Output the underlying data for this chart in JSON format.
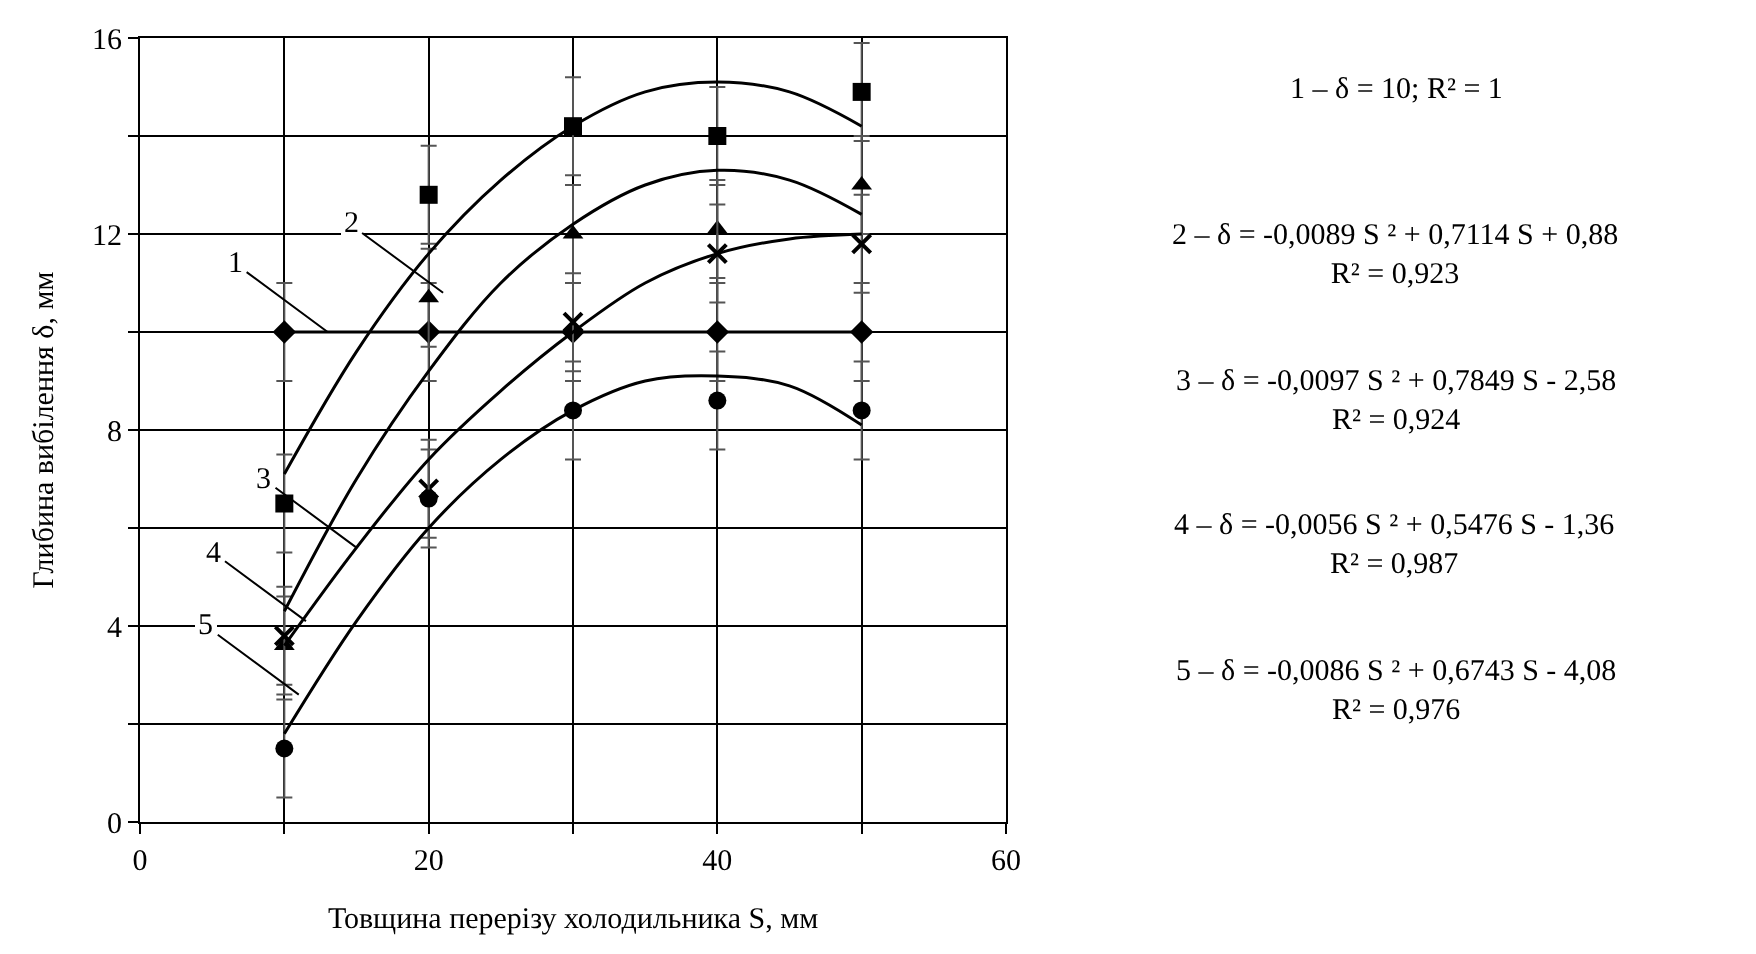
{
  "chart_data": {
    "type": "scatter",
    "xlabel": "Товщина перерізу холодильника S, мм",
    "ylabel": "Глибина вибілення δ, мм",
    "xlim": [
      0,
      60
    ],
    "ylim": [
      0,
      16
    ],
    "xticks": [
      0,
      {
        "value": 10,
        "label": null
      },
      20,
      {
        "value": 30,
        "label": null
      },
      40,
      {
        "value": 50,
        "label": null
      },
      60
    ],
    "yticks": [
      0,
      {
        "value": 2,
        "label": null
      },
      4,
      {
        "value": 6,
        "label": null
      },
      8,
      {
        "value": 10,
        "label": null
      },
      12,
      {
        "value": 14,
        "label": null
      },
      16
    ],
    "grid": true,
    "series": [
      {
        "type": "line",
        "marker": "diamond",
        "color": "#000000",
        "x": [
          10,
          20,
          30,
          40,
          50
        ],
        "values": [
          10,
          10,
          10,
          10,
          10
        ],
        "errors": [
          1,
          1,
          1,
          1,
          1
        ]
      },
      {
        "marker": "square",
        "color": "#000000",
        "x": [
          10,
          20,
          30,
          40,
          50
        ],
        "values": [
          6.5,
          12.8,
          14.2,
          14.0,
          14.9
        ],
        "errors": [
          1,
          1,
          1,
          1,
          1
        ]
      },
      {
        "marker": "triangle",
        "color": "#000000",
        "x": [
          10,
          20,
          30,
          40,
          50
        ],
        "values": [
          3.6,
          10.7,
          12.0,
          12.1,
          13.0
        ],
        "errors": [
          1,
          1,
          1,
          1,
          1
        ]
      },
      {
        "marker": "cross",
        "color": "#000000",
        "x": [
          10,
          20,
          30,
          40,
          50
        ],
        "values": [
          3.8,
          6.8,
          10.2,
          11.6,
          11.8
        ],
        "errors": [
          1,
          1,
          1,
          1,
          1
        ]
      },
      {
        "marker": "circle",
        "color": "#000000",
        "x": [
          10,
          20,
          30,
          40,
          50
        ],
        "values": [
          1.5,
          6.6,
          8.4,
          8.6,
          8.4
        ],
        "errors": [
          1,
          1,
          1,
          1,
          1
        ]
      },
      {
        "type": "line",
        "marker": "none",
        "color": "#000000",
        "x": [
          10,
          15,
          20,
          25,
          30,
          35,
          40,
          45,
          50
        ],
        "values": [
          7.1,
          9.6,
          11.6,
          13.1,
          14.2,
          14.9,
          15.1,
          14.9,
          14.2
        ]
      },
      {
        "type": "line",
        "marker": "none",
        "color": "#000000",
        "x": [
          10,
          15,
          20,
          25,
          30,
          35,
          40,
          45,
          50
        ],
        "values": [
          4.3,
          7.0,
          9.2,
          11.0,
          12.2,
          13.0,
          13.3,
          13.1,
          12.4
        ]
      },
      {
        "type": "line",
        "marker": "none",
        "color": "#000000",
        "x": [
          10,
          15,
          20,
          25,
          30,
          35,
          40,
          45,
          50
        ],
        "values": [
          3.6,
          5.6,
          7.4,
          8.8,
          10.0,
          11.0,
          11.6,
          11.9,
          12.0
        ]
      },
      {
        "type": "line",
        "marker": "none",
        "color": "#000000",
        "x": [
          10,
          15,
          20,
          25,
          30,
          35,
          40,
          45,
          50
        ],
        "values": [
          1.8,
          4.1,
          6.0,
          7.4,
          8.4,
          9.0,
          9.1,
          8.9,
          8.1
        ]
      }
    ],
    "annotations": [
      {
        "text": "1",
        "x": 13,
        "y": 10
      },
      {
        "text": "2",
        "x": 21,
        "y": 10.8
      },
      {
        "text": "3",
        "x": 15,
        "y": 5.6
      },
      {
        "text": "4",
        "x": 11.5,
        "y": 4.1
      },
      {
        "text": "5",
        "x": 11,
        "y": 2.6
      },
      "1 – δ = 10; R² = 1",
      "2 – δ = -0,0089 S ² + 0,7114 S + 0,88\nR² = 0,923",
      "3 – δ = -0,0097 S ² + 0,7849 S - 2,58\nR² = 0,924",
      "4 – δ = -0,0056 S ² + 0,5476 S - 1,36\nR² = 0,987",
      "5 – δ = -0,0086 S ² + 0,6743 S - 4,08\nR² = 0,976"
    ]
  }
}
